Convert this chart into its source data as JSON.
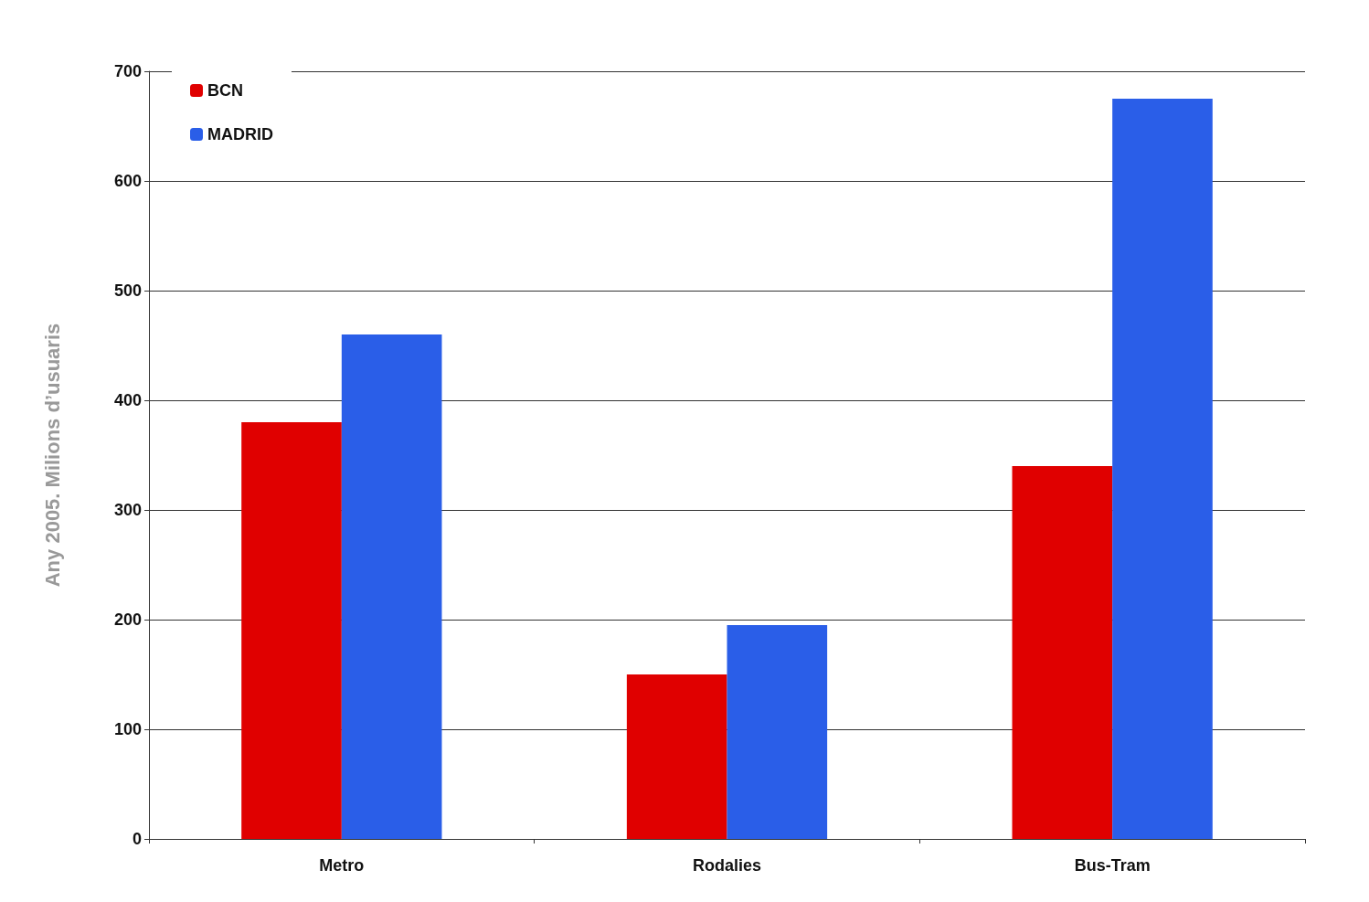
{
  "chart_data": {
    "type": "bar",
    "ylabel": "Any 2005. Milions d’usuaris",
    "categories": [
      "Metro",
      "Rodalies",
      "Bus-Tram"
    ],
    "series": [
      {
        "name": "BCN",
        "color": "#e00000",
        "values": [
          380,
          150,
          340
        ]
      },
      {
        "name": "MADRID",
        "color": "#2a5ee8",
        "values": [
          460,
          195,
          675
        ]
      }
    ],
    "ylim": [
      0,
      700
    ],
    "yticks": [
      0,
      100,
      200,
      300,
      400,
      500,
      600,
      700
    ],
    "grid": "y",
    "legend": "top left"
  }
}
